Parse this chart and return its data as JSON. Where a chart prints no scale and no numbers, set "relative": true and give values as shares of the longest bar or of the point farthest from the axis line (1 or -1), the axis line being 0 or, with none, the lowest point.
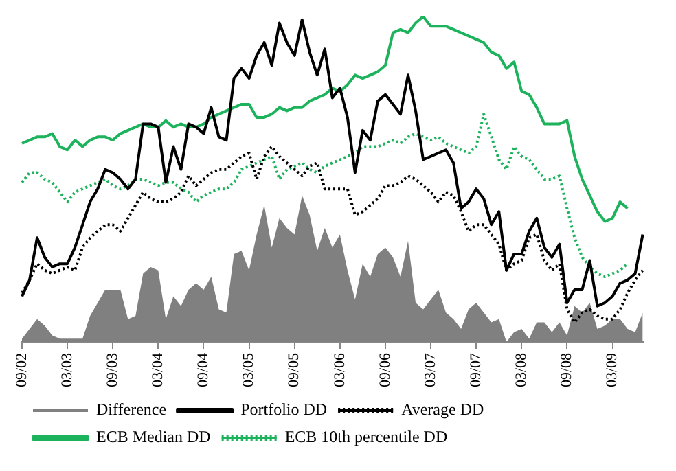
{
  "chart_data": {
    "type": "line",
    "relative": true,
    "legend": "bottom",
    "marker": "none",
    "categories": [
      "09/02",
      null,
      null,
      null,
      null,
      null,
      "03/03",
      null,
      null,
      null,
      null,
      null,
      "09/03",
      null,
      null,
      null,
      null,
      null,
      "03/04",
      null,
      null,
      null,
      null,
      null,
      "09/04",
      null,
      null,
      null,
      null,
      null,
      "03/05",
      null,
      null,
      null,
      null,
      null,
      "09/05",
      null,
      null,
      null,
      null,
      null,
      "03/06",
      null,
      null,
      null,
      null,
      null,
      "09/06",
      null,
      null,
      null,
      null,
      null,
      "03/07",
      null,
      null,
      null,
      null,
      null,
      "09/07",
      null,
      null,
      null,
      null,
      null,
      "03/08",
      null,
      null,
      null,
      null,
      null,
      "09/08",
      null,
      null,
      null,
      null,
      null,
      "03/09",
      null,
      null,
      null,
      null
    ],
    "series": [
      {
        "name": "Difference",
        "type": "area",
        "color": "#808080",
        "values": [
          0.01,
          0.04,
          0.07,
          0.05,
          0.02,
          0.01,
          0.01,
          0.01,
          0.01,
          0.08,
          0.12,
          0.16,
          0.16,
          0.16,
          0.07,
          0.08,
          0.21,
          0.23,
          0.22,
          0.07,
          0.14,
          0.11,
          0.16,
          0.18,
          0.16,
          0.2,
          0.1,
          0.09,
          0.27,
          0.28,
          0.22,
          0.33,
          0.42,
          0.29,
          0.38,
          0.35,
          0.33,
          0.45,
          0.39,
          0.28,
          0.35,
          0.29,
          0.33,
          0.22,
          0.13,
          0.24,
          0.2,
          0.27,
          0.29,
          0.26,
          0.2,
          0.31,
          0.12,
          0.1,
          0.13,
          0.16,
          0.09,
          0.07,
          0.04,
          0.1,
          0.12,
          0.09,
          0.06,
          0.07,
          0,
          0.03,
          0.04,
          0.01,
          0.06,
          0.06,
          0.03,
          0.06,
          0.02,
          0.11,
          0.09,
          0.12,
          0.04,
          0.05,
          0.07,
          0.07,
          0.04,
          0.03,
          0.09
        ]
      },
      {
        "name": "Portfolio DD",
        "type": "line",
        "color": "#000000",
        "line_style": "solid",
        "values": [
          0.14,
          0.19,
          0.32,
          0.26,
          0.23,
          0.24,
          0.24,
          0.29,
          0.36,
          0.43,
          0.47,
          0.53,
          0.52,
          0.5,
          0.47,
          0.5,
          0.67,
          0.67,
          0.66,
          0.49,
          0.6,
          0.53,
          0.67,
          0.66,
          0.64,
          0.72,
          0.63,
          0.62,
          0.81,
          0.84,
          0.81,
          0.88,
          0.92,
          0.85,
          0.98,
          0.92,
          0.88,
          0.99,
          0.89,
          0.82,
          0.9,
          0.75,
          0.78,
          0.69,
          0.52,
          0.65,
          0.62,
          0.74,
          0.76,
          0.73,
          0.7,
          0.82,
          0.71,
          0.56,
          0.57,
          0.58,
          0.59,
          0.55,
          0.41,
          0.43,
          0.47,
          0.44,
          0.36,
          0.4,
          0.22,
          0.27,
          0.27,
          0.34,
          0.38,
          0.29,
          0.26,
          0.3,
          0.12,
          0.16,
          0.16,
          0.25,
          0.11,
          0.12,
          0.14,
          0.18,
          0.19,
          0.21,
          0.33
        ]
      },
      {
        "name": "Average DD",
        "type": "line",
        "color": "#000000",
        "line_style": "dotted",
        "values": [
          0.15,
          0.19,
          0.24,
          0.22,
          0.21,
          0.22,
          0.23,
          0.22,
          0.29,
          0.32,
          0.34,
          0.36,
          0.36,
          0.34,
          0.38,
          0.42,
          0.46,
          0.44,
          0.43,
          0.43,
          0.44,
          0.46,
          0.51,
          0.48,
          0.5,
          0.52,
          0.53,
          0.53,
          0.55,
          0.57,
          0.58,
          0.5,
          0.57,
          0.6,
          0.57,
          0.55,
          0.53,
          0.51,
          0.54,
          0.55,
          0.47,
          0.47,
          0.47,
          0.47,
          0.39,
          0.4,
          0.42,
          0.44,
          0.48,
          0.48,
          0.49,
          0.51,
          0.5,
          0.48,
          0.46,
          0.43,
          0.46,
          0.45,
          0.4,
          0.34,
          0.36,
          0.36,
          0.33,
          0.3,
          0.22,
          0.24,
          0.25,
          0.32,
          0.33,
          0.25,
          0.22,
          0.24,
          0.1,
          0.06,
          0.09,
          0.1,
          0.08,
          0.07,
          0.07,
          0.1,
          0.15,
          0.19,
          0.22
        ]
      },
      {
        "name": "ECB Median DD",
        "type": "line",
        "color": "#1db35c",
        "line_style": "solid",
        "values": [
          0.61,
          0.62,
          0.63,
          0.63,
          0.64,
          0.6,
          0.59,
          0.62,
          0.6,
          0.62,
          0.63,
          0.63,
          0.62,
          0.64,
          0.65,
          0.66,
          0.67,
          0.66,
          0.66,
          0.68,
          0.66,
          0.67,
          0.66,
          0.66,
          0.67,
          0.69,
          0.7,
          0.71,
          0.72,
          0.73,
          0.73,
          0.69,
          0.69,
          0.7,
          0.72,
          0.71,
          0.72,
          0.72,
          0.74,
          0.75,
          0.76,
          0.78,
          0.77,
          0.79,
          0.82,
          0.81,
          0.82,
          0.83,
          0.85,
          0.95,
          0.96,
          0.95,
          0.98,
          1,
          0.97,
          0.97,
          0.97,
          0.96,
          0.95,
          0.94,
          0.93,
          0.92,
          0.89,
          0.88,
          0.84,
          0.86,
          0.77,
          0.76,
          0.72,
          0.67,
          0.67,
          0.67,
          0.68,
          0.57,
          0.5,
          0.45,
          0.4,
          0.37,
          0.38,
          0.43,
          0.41,
          null,
          null
        ]
      },
      {
        "name": "ECB 10th percentile DD",
        "type": "line",
        "color": "#1db35c",
        "line_style": "dotted",
        "values": [
          0.49,
          0.52,
          0.52,
          0.5,
          0.49,
          0.46,
          0.43,
          0.46,
          0.47,
          0.48,
          0.49,
          0.5,
          0.48,
          0.47,
          0.48,
          0.5,
          0.5,
          0.49,
          0.48,
          0.49,
          0.49,
          0.47,
          0.46,
          0.43,
          0.45,
          0.46,
          0.47,
          0.47,
          0.49,
          0.53,
          0.54,
          0.55,
          0.56,
          0.57,
          0.5,
          0.53,
          0.54,
          0.55,
          0.53,
          0.52,
          0.54,
          0.55,
          0.56,
          0.57,
          0.58,
          0.6,
          0.6,
          0.6,
          0.61,
          0.62,
          0.61,
          0.63,
          0.64,
          0.63,
          0.62,
          0.63,
          0.61,
          0.6,
          0.59,
          0.58,
          0.6,
          0.7,
          0.63,
          0.56,
          0.53,
          0.6,
          0.57,
          0.56,
          0.53,
          0.5,
          0.5,
          0.51,
          0.41,
          0.32,
          0.26,
          0.23,
          0.21,
          0.2,
          0.21,
          0.22,
          0.24,
          null,
          null
        ]
      }
    ]
  }
}
